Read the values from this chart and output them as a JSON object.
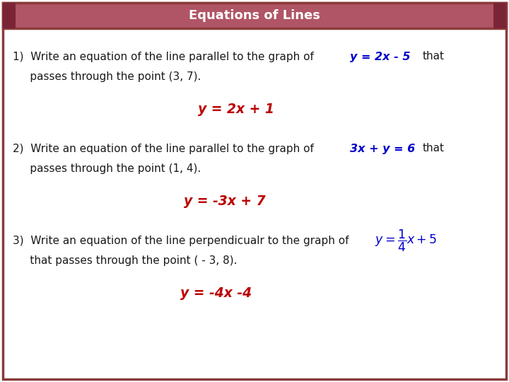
{
  "title": "Equations of Lines",
  "title_bg_color": "#b05565",
  "title_text_color": "#ffffff",
  "body_bg_color": "#ffffff",
  "border_color": "#8b3a3a",
  "dark_accent": "#7a2535",
  "text_color_black": "#1a1a1a",
  "text_color_blue": "#0000cc",
  "text_color_red": "#bb0000",
  "figsize": [
    7.2,
    5.4
  ],
  "dpi": 100,
  "q1_line1_plain": "1)  Write an equation of the line parallel to the graph of",
  "q1_line1_eq": "y = 2x - 5",
  "q1_line1_tail": "that",
  "q1_line2": "     passes through the point (3, 7).",
  "q1_answer": "y = 2x + 1",
  "q2_line1_plain": "2)  Write an equation of the line parallel to the graph of",
  "q2_line1_eq": "3x + y = 6",
  "q2_line1_tail": "that",
  "q2_line2": "     passes through the point (1, 4).",
  "q2_answer": "y = -3x + 7",
  "q3_line1_plain": "3)  Write an equation of the line perpendicualr to the graph of",
  "q3_line2": "     that passes through the point ( - 3, 8).",
  "q3_answer": "y = -4x -4"
}
